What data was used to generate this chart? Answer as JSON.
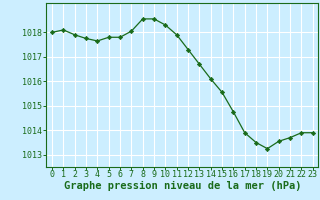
{
  "x": [
    0,
    1,
    2,
    3,
    4,
    5,
    6,
    7,
    8,
    9,
    10,
    11,
    12,
    13,
    14,
    15,
    16,
    17,
    18,
    19,
    20,
    21,
    22,
    23
  ],
  "y": [
    1018.0,
    1018.1,
    1017.9,
    1017.75,
    1017.65,
    1017.8,
    1017.8,
    1018.05,
    1018.55,
    1018.55,
    1018.3,
    1017.9,
    1017.3,
    1016.7,
    1016.1,
    1015.55,
    1014.75,
    1013.9,
    1013.5,
    1013.25,
    1013.55,
    1013.7,
    1013.9,
    1013.9
  ],
  "line_color": "#1a6b1a",
  "marker": "D",
  "marker_size": 2.2,
  "background_color": "#cceeff",
  "grid_color": "#ffffff",
  "xlabel": "Graphe pression niveau de la mer (hPa)",
  "ylim": [
    1012.5,
    1019.2
  ],
  "xlim": [
    -0.5,
    23.5
  ],
  "yticks": [
    1013,
    1014,
    1015,
    1016,
    1017,
    1018
  ],
  "xticks": [
    0,
    1,
    2,
    3,
    4,
    5,
    6,
    7,
    8,
    9,
    10,
    11,
    12,
    13,
    14,
    15,
    16,
    17,
    18,
    19,
    20,
    21,
    22,
    23
  ],
  "tick_color": "#1a6b1a",
  "label_color": "#1a6b1a",
  "label_fontsize": 7.5,
  "tick_fontsize": 6.0
}
